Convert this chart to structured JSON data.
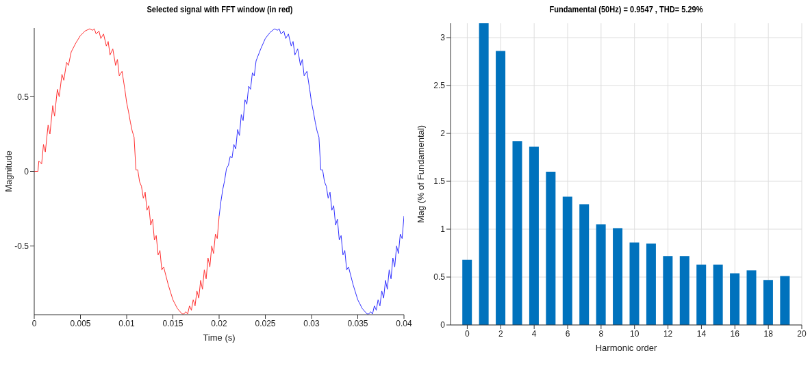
{
  "chart_data": [
    {
      "type": "line",
      "title": "Selected signal with FFT window (in red)",
      "xlabel": "Time (s)",
      "ylabel": "Magnitude",
      "xlim": [
        0,
        0.04
      ],
      "xticks": [
        0,
        0.005,
        0.01,
        0.015,
        0.02,
        0.025,
        0.03,
        0.035,
        0.04
      ],
      "ylim": [
        -0.96,
        0.96
      ],
      "yticks": [
        -0.5,
        0,
        0.5
      ],
      "line_style": "solid",
      "series": [
        {
          "color": "#ff3030",
          "x": [
            0,
            0.0004,
            0.0005,
            0.0008,
            0.001,
            0.0012,
            0.0015,
            0.0017,
            0.002,
            0.0022,
            0.0025,
            0.0027,
            0.003,
            0.0032,
            0.0035,
            0.0037,
            0.004,
            0.0045,
            0.005,
            0.0055,
            0.006,
            0.0063,
            0.0065,
            0.0067,
            0.007,
            0.0072,
            0.0075,
            0.0078,
            0.008,
            0.0082,
            0.0085,
            0.0088,
            0.009,
            0.0092,
            0.0095,
            0.0098,
            0.01,
            0.0102,
            0.0104,
            0.0106,
            0.0108,
            0.011,
            0.0112,
            0.0114,
            0.0116,
            0.0118,
            0.012,
            0.0122,
            0.0124,
            0.0126,
            0.0128,
            0.013,
            0.0132,
            0.0134,
            0.0136,
            0.0138,
            0.014,
            0.0145,
            0.015,
            0.0155,
            0.016,
            0.0162,
            0.0164,
            0.0166,
            0.0168,
            0.017,
            0.0172,
            0.0174,
            0.0176,
            0.0178,
            0.018,
            0.0182,
            0.0184,
            0.0186,
            0.0188,
            0.019,
            0.0192,
            0.0194,
            0.0196,
            0.0198,
            0.02
          ],
          "values": [
            0,
            0,
            0.07,
            0.05,
            0.18,
            0.13,
            0.31,
            0.25,
            0.44,
            0.37,
            0.55,
            0.5,
            0.65,
            0.61,
            0.73,
            0.71,
            0.8,
            0.86,
            0.91,
            0.94,
            0.955,
            0.945,
            0.955,
            0.92,
            0.94,
            0.89,
            0.92,
            0.84,
            0.87,
            0.78,
            0.82,
            0.71,
            0.75,
            0.64,
            0.67,
            0.55,
            0.46,
            0.4,
            0.33,
            0.27,
            0.23,
            0.01,
            0.01,
            -0.07,
            -0.1,
            -0.18,
            -0.14,
            -0.26,
            -0.23,
            -0.36,
            -0.32,
            -0.46,
            -0.43,
            -0.56,
            -0.53,
            -0.66,
            -0.64,
            -0.76,
            -0.86,
            -0.92,
            -0.955,
            -0.955,
            -0.94,
            -0.955,
            -0.9,
            -0.93,
            -0.86,
            -0.9,
            -0.8,
            -0.85,
            -0.73,
            -0.79,
            -0.66,
            -0.72,
            -0.58,
            -0.64,
            -0.5,
            -0.55,
            -0.42,
            -0.45,
            -0.3
          ]
        },
        {
          "color": "#3030ff",
          "x": [
            0.02,
            0.0202,
            0.0204,
            0.0206,
            0.0208,
            0.021,
            0.0212,
            0.0214,
            0.0216,
            0.0218,
            0.022,
            0.0222,
            0.0224,
            0.0226,
            0.0228,
            0.023,
            0.0232,
            0.0234,
            0.0236,
            0.0238,
            0.024,
            0.0245,
            0.025,
            0.0255,
            0.026,
            0.0263,
            0.0265,
            0.0267,
            0.027,
            0.0272,
            0.0275,
            0.0278,
            0.028,
            0.0282,
            0.0285,
            0.0288,
            0.029,
            0.0292,
            0.0295,
            0.0298,
            0.03,
            0.0302,
            0.0304,
            0.0306,
            0.0308,
            0.031,
            0.0312,
            0.0314,
            0.0316,
            0.0318,
            0.032,
            0.0322,
            0.0324,
            0.0326,
            0.0328,
            0.033,
            0.0332,
            0.0334,
            0.0336,
            0.0338,
            0.034,
            0.0345,
            0.035,
            0.0355,
            0.036,
            0.0362,
            0.0364,
            0.0366,
            0.0368,
            0.037,
            0.0372,
            0.0374,
            0.0376,
            0.0378,
            0.038,
            0.0382,
            0.0384,
            0.0386,
            0.0388,
            0.039,
            0.0392,
            0.0394,
            0.0396,
            0.0398,
            0.04
          ],
          "values": [
            -0.3,
            -0.2,
            -0.12,
            -0.06,
            0.02,
            0.04,
            0.1,
            0.09,
            0.18,
            0.15,
            0.28,
            0.24,
            0.38,
            0.34,
            0.48,
            0.45,
            0.57,
            0.55,
            0.66,
            0.64,
            0.74,
            0.82,
            0.89,
            0.93,
            0.955,
            0.945,
            0.955,
            0.92,
            0.94,
            0.89,
            0.92,
            0.84,
            0.87,
            0.78,
            0.82,
            0.71,
            0.75,
            0.64,
            0.67,
            0.55,
            0.46,
            0.4,
            0.33,
            0.27,
            0.23,
            0.01,
            0.01,
            -0.07,
            -0.1,
            -0.18,
            -0.14,
            -0.26,
            -0.23,
            -0.36,
            -0.32,
            -0.46,
            -0.43,
            -0.56,
            -0.53,
            -0.66,
            -0.64,
            -0.76,
            -0.86,
            -0.92,
            -0.955,
            -0.955,
            -0.94,
            -0.955,
            -0.9,
            -0.93,
            -0.86,
            -0.9,
            -0.8,
            -0.85,
            -0.73,
            -0.79,
            -0.66,
            -0.72,
            -0.58,
            -0.64,
            -0.5,
            -0.55,
            -0.42,
            -0.45,
            -0.3
          ]
        }
      ]
    },
    {
      "type": "bar",
      "title": "Fundamental (50Hz) = 0.9547 , THD= 5.29%",
      "xlabel": "Harmonic order",
      "ylabel": "Mag (% of Fundamental)",
      "x": [
        0,
        1,
        2,
        3,
        4,
        5,
        6,
        7,
        8,
        9,
        10,
        11,
        12,
        13,
        14,
        15,
        16,
        17,
        18,
        19
      ],
      "values": [
        0.68,
        3.15,
        2.86,
        1.92,
        1.86,
        1.6,
        1.34,
        1.26,
        1.05,
        1.01,
        0.86,
        0.85,
        0.72,
        0.72,
        0.63,
        0.63,
        0.54,
        0.57,
        0.47,
        0.51
      ],
      "color": "#0072bd",
      "xlim": [
        -1,
        20
      ],
      "xticks": [
        0,
        2,
        4,
        6,
        8,
        10,
        12,
        14,
        16,
        18,
        20
      ],
      "ylim": [
        0,
        3.15
      ],
      "yticks": [
        0,
        0.5,
        1,
        1.5,
        2,
        2.5,
        3
      ],
      "grid": true
    }
  ]
}
